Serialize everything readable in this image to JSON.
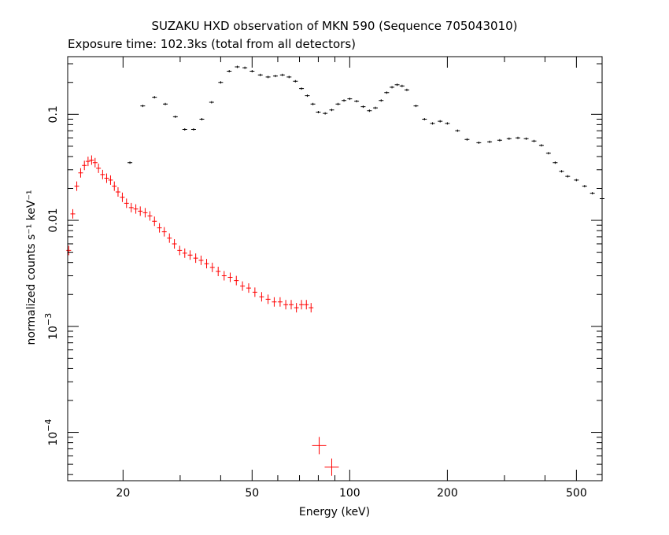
{
  "chart_data": {
    "type": "scatter",
    "title": "SUZAKU HXD observation of MKN 590 (Sequence 705043010)",
    "subtitle": "Exposure time: 102.3ks (total from all detectors)",
    "xlabel": "Energy (keV)",
    "ylabel": "normalized counts s⁻¹ keV⁻¹",
    "x_scale": "log",
    "y_scale": "log",
    "xlim": [
      13.5,
      600
    ],
    "ylim": [
      3.5e-05,
      0.35
    ],
    "grid": false,
    "x_ticks": [
      {
        "value": 20,
        "label": "20"
      },
      {
        "value": 50,
        "label": "50"
      },
      {
        "value": 100,
        "label": "100"
      },
      {
        "value": 200,
        "label": "200"
      },
      {
        "value": 500,
        "label": "500"
      }
    ],
    "y_ticks": [
      {
        "value": 0.0001,
        "label": "10",
        "exp": "−4"
      },
      {
        "value": 0.001,
        "label": "10",
        "exp": "−3"
      },
      {
        "value": 0.01,
        "label": "0.01",
        "exp": ""
      },
      {
        "value": 0.1,
        "label": "0.1",
        "exp": ""
      }
    ],
    "series": [
      {
        "color": "#ff0000",
        "marker": "cross",
        "x": [
          13.6,
          14.0,
          14.4,
          14.8,
          15.2,
          15.6,
          16.0,
          16.4,
          16.8,
          17.3,
          17.8,
          18.3,
          18.8,
          19.3,
          19.9,
          20.5,
          21.2,
          21.9,
          22.6,
          23.4,
          24.2,
          25.0,
          25.9,
          26.8,
          27.8,
          28.8,
          29.9,
          31.0,
          32.2,
          33.5,
          34.8,
          36.2,
          37.7,
          39.3,
          41.0,
          42.8,
          44.7,
          46.7,
          48.8,
          51.0,
          53.5,
          56.0,
          58.5,
          61.0,
          63.5,
          66.0,
          68.5,
          71.0,
          73.5,
          76.0,
          80.5,
          88.0
        ],
        "y": [
          0.0052,
          0.0115,
          0.021,
          0.028,
          0.033,
          0.036,
          0.037,
          0.035,
          0.031,
          0.027,
          0.025,
          0.024,
          0.021,
          0.0185,
          0.0165,
          0.0145,
          0.0132,
          0.0128,
          0.0122,
          0.0118,
          0.011,
          0.0098,
          0.0085,
          0.0078,
          0.0068,
          0.006,
          0.0052,
          0.0049,
          0.0047,
          0.0044,
          0.0042,
          0.0039,
          0.0036,
          0.0033,
          0.003,
          0.0029,
          0.0027,
          0.0024,
          0.0023,
          0.0021,
          0.0019,
          0.0018,
          0.0017,
          0.0017,
          0.0016,
          0.0016,
          0.0015,
          0.0016,
          0.0016,
          0.0015,
          7.5e-05,
          4.7e-05
        ]
      },
      {
        "color": "#000000",
        "marker": "cross",
        "x": [
          21.0,
          23.0,
          25.0,
          27.0,
          29.0,
          31.0,
          33.0,
          35.0,
          37.5,
          40.0,
          42.5,
          45.0,
          47.5,
          50.0,
          53.0,
          56.0,
          59.0,
          62.0,
          65.0,
          68.0,
          71.0,
          74.0,
          77.0,
          80.0,
          84.0,
          88.0,
          92.0,
          96.0,
          100.0,
          105.0,
          110.0,
          115.0,
          120.0,
          125.0,
          130.0,
          135.0,
          140.0,
          145.0,
          150.0,
          160.0,
          170.0,
          180.0,
          190.0,
          200.0,
          215.0,
          230.0,
          250.0,
          270.0,
          290.0,
          310.0,
          330.0,
          350.0,
          370.0,
          390.0,
          410.0,
          430.0,
          450.0,
          470.0,
          500.0,
          530.0,
          560.0,
          600.0
        ],
        "y": [
          0.035,
          0.12,
          0.145,
          0.125,
          0.095,
          0.072,
          0.072,
          0.09,
          0.13,
          0.2,
          0.255,
          0.28,
          0.275,
          0.255,
          0.235,
          0.225,
          0.23,
          0.235,
          0.225,
          0.205,
          0.175,
          0.15,
          0.125,
          0.105,
          0.102,
          0.11,
          0.125,
          0.135,
          0.14,
          0.133,
          0.118,
          0.108,
          0.115,
          0.135,
          0.16,
          0.18,
          0.19,
          0.185,
          0.17,
          0.12,
          0.09,
          0.082,
          0.086,
          0.082,
          0.07,
          0.058,
          0.054,
          0.055,
          0.057,
          0.059,
          0.06,
          0.059,
          0.056,
          0.051,
          0.043,
          0.035,
          0.029,
          0.026,
          0.024,
          0.021,
          0.018,
          0.016
        ]
      }
    ]
  }
}
